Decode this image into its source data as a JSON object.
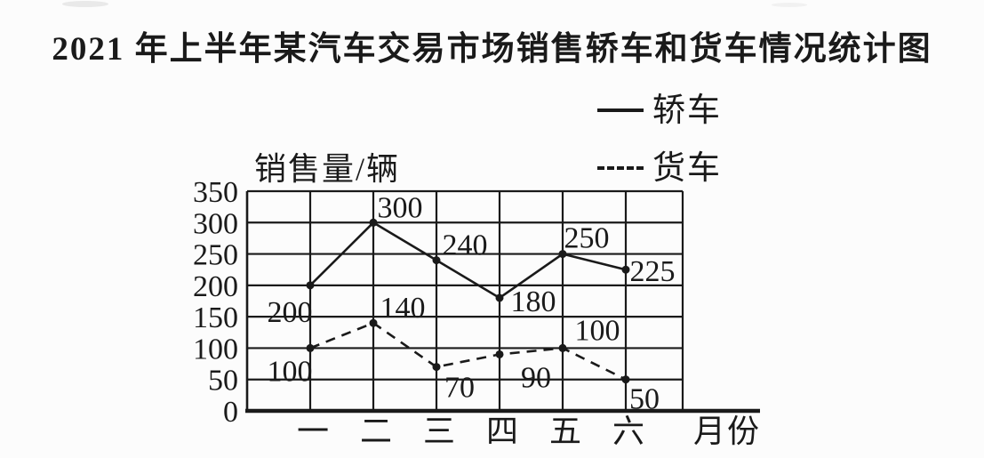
{
  "colors": {
    "ink": "#1a1a1a",
    "background": "#fcfcfc"
  },
  "chart_data": {
    "type": "line",
    "title": "2021 年上半年某汽车交易市场销售轿车和货车情况统计图",
    "ylabel": "销售量/辆",
    "xlabel": "月份",
    "categories": [
      "一",
      "二",
      "三",
      "四",
      "五",
      "六"
    ],
    "yticks": [
      0,
      50,
      100,
      150,
      200,
      250,
      300,
      350
    ],
    "ylim": [
      0,
      350
    ],
    "grid": true,
    "legend_position": "top-right",
    "series": [
      {
        "name": "轿车",
        "style": "solid",
        "values": [
          200,
          300,
          240,
          180,
          250,
          225
        ]
      },
      {
        "name": "货车",
        "style": "dashed",
        "values": [
          100,
          140,
          70,
          90,
          100,
          50
        ]
      }
    ]
  }
}
